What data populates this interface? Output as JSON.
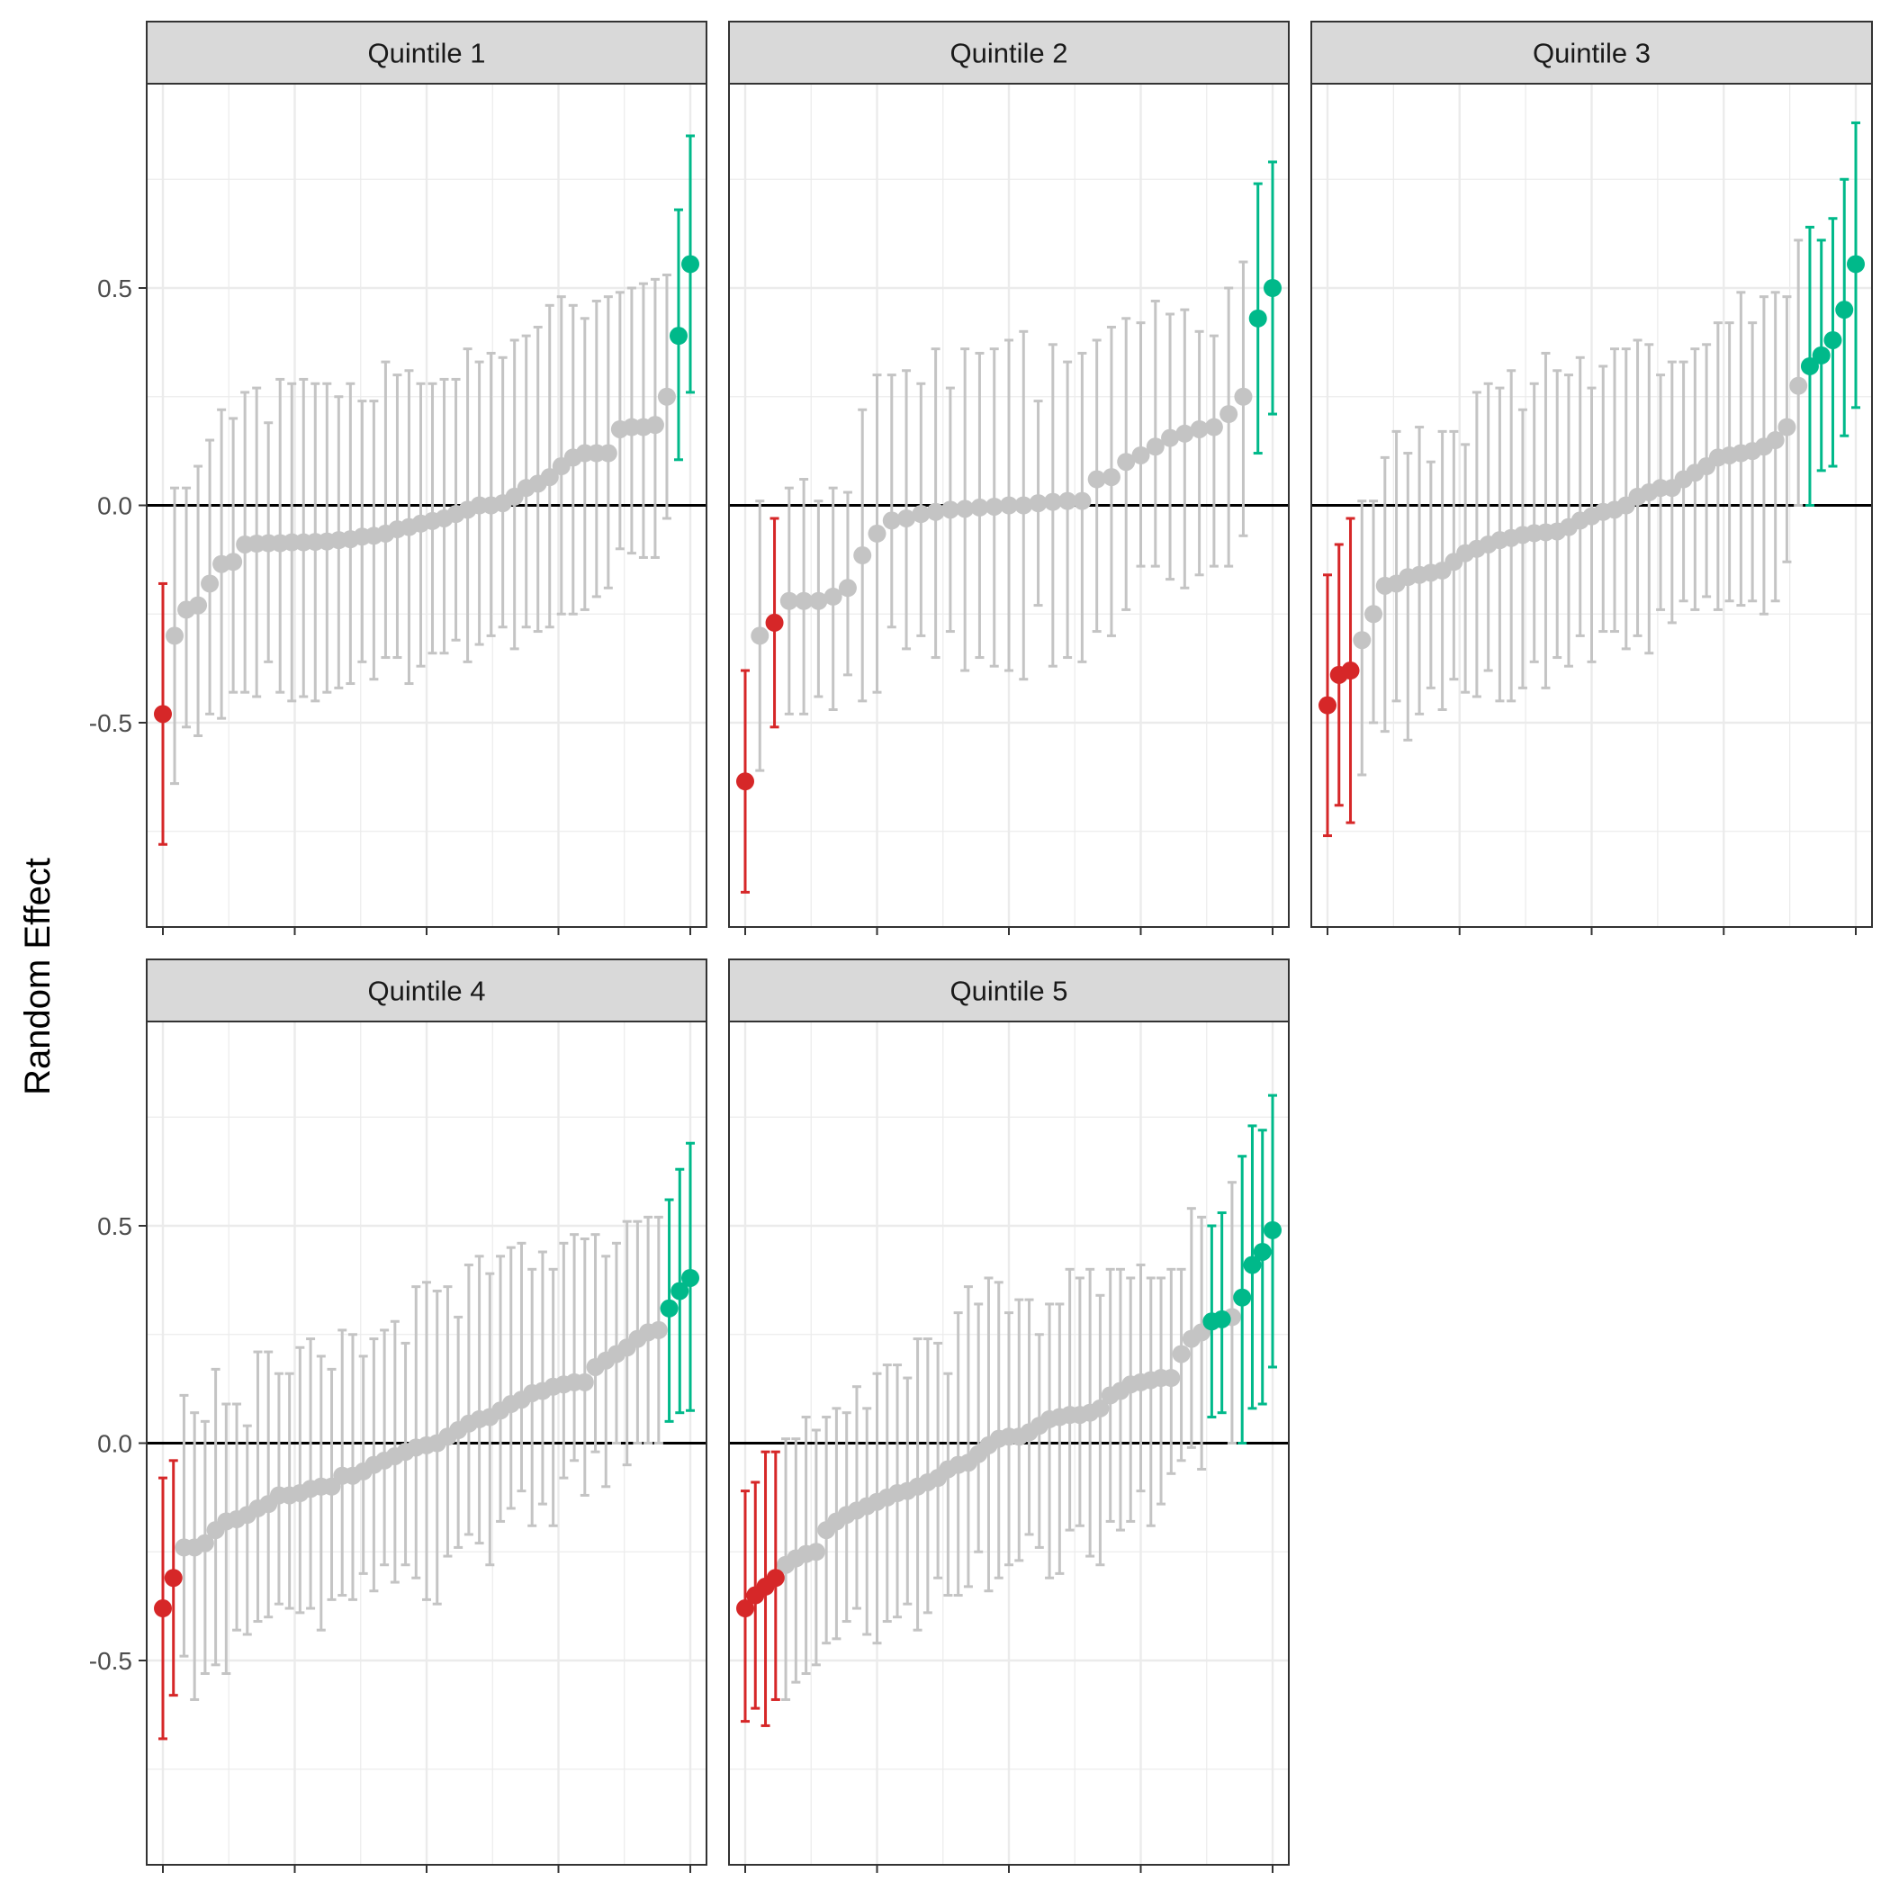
{
  "chart_data": {
    "type": "scatter",
    "subtype": "caterpillar-errorbar",
    "title": "",
    "xlabel": "",
    "ylabel": "Random Effect",
    "ylim": [
      -0.97,
      0.97
    ],
    "yticks": [
      -0.5,
      0.0,
      0.5
    ],
    "ytick_labels": [
      "-0.5",
      "0.0",
      "0.5"
    ],
    "reference_line": 0.0,
    "grid": true,
    "colors": {
      "low": "#d62728",
      "high": "#00b98a",
      "neutral": "#c4c4c4",
      "refline": "#000000"
    },
    "panels": [
      {
        "label": "Quintile 1",
        "estimates": [
          -0.48,
          -0.3,
          -0.24,
          -0.23,
          -0.18,
          -0.135,
          -0.13,
          -0.09,
          -0.088,
          -0.087,
          -0.087,
          -0.085,
          -0.085,
          -0.084,
          -0.083,
          -0.08,
          -0.078,
          -0.072,
          -0.07,
          -0.065,
          -0.055,
          -0.05,
          -0.042,
          -0.036,
          -0.03,
          -0.02,
          -0.01,
          0.0,
          0.0,
          0.005,
          0.02,
          0.04,
          0.05,
          0.065,
          0.09,
          0.11,
          0.12,
          0.12,
          0.12,
          0.175,
          0.18,
          0.18,
          0.185,
          0.25,
          0.39,
          0.555
        ],
        "lower": [
          -0.78,
          -0.64,
          -0.51,
          -0.53,
          -0.48,
          -0.49,
          -0.43,
          -0.43,
          -0.44,
          -0.36,
          -0.43,
          -0.45,
          -0.44,
          -0.45,
          -0.43,
          -0.42,
          -0.41,
          -0.36,
          -0.4,
          -0.35,
          -0.35,
          -0.41,
          -0.37,
          -0.34,
          -0.34,
          -0.31,
          -0.36,
          -0.32,
          -0.3,
          -0.28,
          -0.33,
          -0.28,
          -0.29,
          -0.28,
          -0.25,
          -0.25,
          -0.24,
          -0.21,
          -0.19,
          -0.1,
          -0.11,
          -0.12,
          -0.12,
          -0.03,
          0.105,
          0.26
        ],
        "upper": [
          -0.18,
          0.04,
          0.04,
          0.09,
          0.15,
          0.22,
          0.2,
          0.26,
          0.27,
          0.19,
          0.29,
          0.28,
          0.29,
          0.28,
          0.28,
          0.25,
          0.28,
          0.24,
          0.24,
          0.33,
          0.3,
          0.31,
          0.28,
          0.28,
          0.29,
          0.29,
          0.36,
          0.33,
          0.35,
          0.34,
          0.38,
          0.39,
          0.41,
          0.46,
          0.48,
          0.46,
          0.43,
          0.47,
          0.48,
          0.49,
          0.5,
          0.51,
          0.52,
          0.53,
          0.68,
          0.85
        ],
        "highlight": [
          "low",
          "none",
          "none",
          "none",
          "none",
          "none",
          "none",
          "none",
          "none",
          "none",
          "none",
          "none",
          "none",
          "none",
          "none",
          "none",
          "none",
          "none",
          "none",
          "none",
          "none",
          "none",
          "none",
          "none",
          "none",
          "none",
          "none",
          "none",
          "none",
          "none",
          "none",
          "none",
          "none",
          "none",
          "none",
          "none",
          "none",
          "none",
          "none",
          "none",
          "none",
          "none",
          "none",
          "none",
          "high",
          "high"
        ]
      },
      {
        "label": "Quintile 2",
        "estimates": [
          -0.635,
          -0.3,
          -0.27,
          -0.22,
          -0.22,
          -0.22,
          -0.21,
          -0.19,
          -0.115,
          -0.065,
          -0.035,
          -0.03,
          -0.02,
          -0.015,
          -0.01,
          -0.008,
          -0.005,
          -0.003,
          0.0,
          0.0,
          0.005,
          0.008,
          0.01,
          0.01,
          0.06,
          0.065,
          0.1,
          0.115,
          0.135,
          0.155,
          0.165,
          0.175,
          0.18,
          0.21,
          0.25,
          0.43,
          0.5
        ],
        "lower": [
          -0.89,
          -0.61,
          -0.51,
          -0.48,
          -0.48,
          -0.44,
          -0.47,
          -0.39,
          -0.45,
          -0.43,
          -0.28,
          -0.33,
          -0.3,
          -0.35,
          -0.29,
          -0.38,
          -0.35,
          -0.37,
          -0.38,
          -0.4,
          -0.23,
          -0.37,
          -0.35,
          -0.36,
          -0.29,
          -0.3,
          -0.24,
          -0.14,
          -0.14,
          -0.17,
          -0.19,
          -0.16,
          -0.14,
          -0.14,
          -0.07,
          0.12,
          0.21
        ],
        "upper": [
          -0.38,
          0.01,
          -0.03,
          0.04,
          0.06,
          0.01,
          0.04,
          0.03,
          0.22,
          0.3,
          0.3,
          0.31,
          0.28,
          0.36,
          0.27,
          0.36,
          0.35,
          0.36,
          0.38,
          0.4,
          0.24,
          0.37,
          0.33,
          0.35,
          0.38,
          0.41,
          0.43,
          0.42,
          0.47,
          0.44,
          0.45,
          0.4,
          0.39,
          0.5,
          0.56,
          0.74,
          0.79
        ],
        "highlight": [
          "low",
          "none",
          "low",
          "none",
          "none",
          "none",
          "none",
          "none",
          "none",
          "none",
          "none",
          "none",
          "none",
          "none",
          "none",
          "none",
          "none",
          "none",
          "none",
          "none",
          "none",
          "none",
          "none",
          "none",
          "none",
          "none",
          "none",
          "none",
          "none",
          "none",
          "none",
          "none",
          "none",
          "none",
          "none",
          "high",
          "high"
        ]
      },
      {
        "label": "Quintile 3",
        "estimates": [
          -0.46,
          -0.39,
          -0.38,
          -0.31,
          -0.25,
          -0.185,
          -0.18,
          -0.165,
          -0.16,
          -0.155,
          -0.15,
          -0.13,
          -0.11,
          -0.1,
          -0.09,
          -0.08,
          -0.075,
          -0.068,
          -0.064,
          -0.062,
          -0.06,
          -0.05,
          -0.035,
          -0.025,
          -0.015,
          -0.01,
          0.0,
          0.02,
          0.03,
          0.04,
          0.04,
          0.06,
          0.075,
          0.09,
          0.11,
          0.115,
          0.12,
          0.125,
          0.135,
          0.15,
          0.18,
          0.275,
          0.32,
          0.345,
          0.38,
          0.45,
          0.555
        ],
        "lower": [
          -0.76,
          -0.69,
          -0.73,
          -0.62,
          -0.5,
          -0.52,
          -0.45,
          -0.54,
          -0.48,
          -0.42,
          -0.47,
          -0.4,
          -0.43,
          -0.44,
          -0.38,
          -0.45,
          -0.45,
          -0.42,
          -0.36,
          -0.42,
          -0.35,
          -0.37,
          -0.3,
          -0.36,
          -0.29,
          -0.29,
          -0.33,
          -0.3,
          -0.34,
          -0.24,
          -0.27,
          -0.22,
          -0.24,
          -0.21,
          -0.24,
          -0.22,
          -0.23,
          -0.22,
          -0.25,
          -0.22,
          -0.13,
          0.0,
          0.0,
          0.08,
          0.09,
          0.16,
          0.225
        ],
        "upper": [
          -0.16,
          -0.09,
          -0.03,
          0.01,
          0.01,
          0.11,
          0.17,
          0.12,
          0.18,
          0.1,
          0.17,
          0.17,
          0.14,
          0.26,
          0.28,
          0.27,
          0.31,
          0.22,
          0.28,
          0.35,
          0.31,
          0.3,
          0.34,
          0.27,
          0.32,
          0.36,
          0.36,
          0.38,
          0.37,
          0.3,
          0.33,
          0.33,
          0.36,
          0.37,
          0.42,
          0.42,
          0.49,
          0.42,
          0.48,
          0.49,
          0.48,
          0.61,
          0.64,
          0.61,
          0.66,
          0.75,
          0.88
        ],
        "highlight": [
          "low",
          "low",
          "low",
          "none",
          "none",
          "none",
          "none",
          "none",
          "none",
          "none",
          "none",
          "none",
          "none",
          "none",
          "none",
          "none",
          "none",
          "none",
          "none",
          "none",
          "none",
          "none",
          "none",
          "none",
          "none",
          "none",
          "none",
          "none",
          "none",
          "none",
          "none",
          "none",
          "none",
          "none",
          "none",
          "none",
          "none",
          "none",
          "none",
          "none",
          "none",
          "none",
          "high",
          "high",
          "high",
          "high",
          "high"
        ]
      },
      {
        "label": "Quintile 4",
        "estimates": [
          -0.38,
          -0.31,
          -0.24,
          -0.24,
          -0.23,
          -0.2,
          -0.18,
          -0.175,
          -0.165,
          -0.15,
          -0.14,
          -0.12,
          -0.12,
          -0.115,
          -0.105,
          -0.1,
          -0.1,
          -0.075,
          -0.075,
          -0.065,
          -0.05,
          -0.04,
          -0.03,
          -0.02,
          -0.01,
          -0.005,
          0.0,
          0.015,
          0.03,
          0.045,
          0.055,
          0.06,
          0.075,
          0.09,
          0.1,
          0.115,
          0.12,
          0.13,
          0.135,
          0.14,
          0.14,
          0.175,
          0.19,
          0.205,
          0.22,
          0.24,
          0.255,
          0.26,
          0.31,
          0.35,
          0.38
        ],
        "lower": [
          -0.68,
          -0.58,
          -0.49,
          -0.59,
          -0.53,
          -0.51,
          -0.53,
          -0.43,
          -0.44,
          -0.41,
          -0.4,
          -0.37,
          -0.38,
          -0.39,
          -0.38,
          -0.43,
          -0.36,
          -0.35,
          -0.36,
          -0.3,
          -0.34,
          -0.28,
          -0.32,
          -0.28,
          -0.31,
          -0.36,
          -0.37,
          -0.26,
          -0.24,
          -0.21,
          -0.23,
          -0.28,
          -0.18,
          -0.15,
          -0.11,
          -0.19,
          -0.14,
          -0.19,
          -0.08,
          -0.04,
          -0.12,
          -0.02,
          -0.1,
          0.0,
          -0.05,
          0.0,
          0.0,
          0.0,
          0.05,
          0.07,
          0.075
        ],
        "upper": [
          -0.08,
          -0.04,
          0.11,
          0.07,
          0.05,
          0.17,
          0.09,
          0.09,
          0.04,
          0.21,
          0.21,
          0.16,
          0.16,
          0.22,
          0.24,
          0.2,
          0.17,
          0.26,
          0.25,
          0.2,
          0.24,
          0.26,
          0.28,
          0.23,
          0.36,
          0.37,
          0.35,
          0.36,
          0.29,
          0.41,
          0.43,
          0.39,
          0.43,
          0.45,
          0.46,
          0.4,
          0.44,
          0.4,
          0.46,
          0.48,
          0.47,
          0.48,
          0.43,
          0.46,
          0.51,
          0.51,
          0.52,
          0.52,
          0.56,
          0.63,
          0.69
        ],
        "highlight": [
          "low",
          "low",
          "none",
          "none",
          "none",
          "none",
          "none",
          "none",
          "none",
          "none",
          "none",
          "none",
          "none",
          "none",
          "none",
          "none",
          "none",
          "none",
          "none",
          "none",
          "none",
          "none",
          "none",
          "none",
          "none",
          "none",
          "none",
          "none",
          "none",
          "none",
          "none",
          "none",
          "none",
          "none",
          "none",
          "none",
          "none",
          "none",
          "none",
          "none",
          "none",
          "none",
          "none",
          "none",
          "none",
          "none",
          "none",
          "none",
          "high",
          "high",
          "high"
        ]
      },
      {
        "label": "Quintile 5",
        "estimates": [
          -0.38,
          -0.35,
          -0.33,
          -0.31,
          -0.28,
          -0.265,
          -0.255,
          -0.25,
          -0.2,
          -0.18,
          -0.165,
          -0.155,
          -0.145,
          -0.135,
          -0.125,
          -0.115,
          -0.11,
          -0.1,
          -0.09,
          -0.08,
          -0.06,
          -0.05,
          -0.045,
          -0.025,
          -0.005,
          0.01,
          0.015,
          0.015,
          0.025,
          0.04,
          0.055,
          0.06,
          0.065,
          0.065,
          0.07,
          0.08,
          0.11,
          0.12,
          0.135,
          0.14,
          0.145,
          0.15,
          0.15,
          0.205,
          0.24,
          0.255,
          0.28,
          0.285,
          0.29,
          0.335,
          0.41,
          0.44,
          0.49
        ],
        "lower": [
          -0.64,
          -0.61,
          -0.65,
          -0.59,
          -0.59,
          -0.55,
          -0.53,
          -0.51,
          -0.46,
          -0.45,
          -0.41,
          -0.38,
          -0.44,
          -0.46,
          -0.41,
          -0.4,
          -0.37,
          -0.43,
          -0.39,
          -0.31,
          -0.35,
          -0.35,
          -0.33,
          -0.25,
          -0.34,
          -0.31,
          -0.28,
          -0.27,
          -0.21,
          -0.24,
          -0.31,
          -0.3,
          -0.2,
          -0.19,
          -0.26,
          -0.28,
          -0.18,
          -0.2,
          -0.18,
          -0.11,
          -0.19,
          -0.14,
          -0.07,
          -0.04,
          -0.01,
          -0.06,
          0.06,
          0.07,
          0.0,
          0.0,
          0.08,
          0.09,
          0.175
        ],
        "upper": [
          -0.11,
          -0.09,
          -0.02,
          -0.02,
          0.01,
          0.01,
          0.06,
          0.03,
          0.06,
          0.08,
          0.07,
          0.13,
          0.08,
          0.16,
          0.18,
          0.18,
          0.15,
          0.24,
          0.24,
          0.23,
          0.16,
          0.3,
          0.36,
          0.32,
          0.38,
          0.37,
          0.3,
          0.33,
          0.33,
          0.25,
          0.32,
          0.32,
          0.4,
          0.38,
          0.4,
          0.34,
          0.4,
          0.4,
          0.38,
          0.41,
          0.38,
          0.38,
          0.4,
          0.4,
          0.54,
          0.52,
          0.5,
          0.53,
          0.6,
          0.66,
          0.73,
          0.72,
          0.8
        ],
        "highlight": [
          "low",
          "low",
          "low",
          "low",
          "none",
          "none",
          "none",
          "none",
          "none",
          "none",
          "none",
          "none",
          "none",
          "none",
          "none",
          "none",
          "none",
          "none",
          "none",
          "none",
          "none",
          "none",
          "none",
          "none",
          "none",
          "none",
          "none",
          "none",
          "none",
          "none",
          "none",
          "none",
          "none",
          "none",
          "none",
          "none",
          "none",
          "none",
          "none",
          "none",
          "none",
          "none",
          "none",
          "none",
          "none",
          "none",
          "high",
          "high",
          "none",
          "high",
          "high",
          "high",
          "high"
        ]
      }
    ]
  }
}
